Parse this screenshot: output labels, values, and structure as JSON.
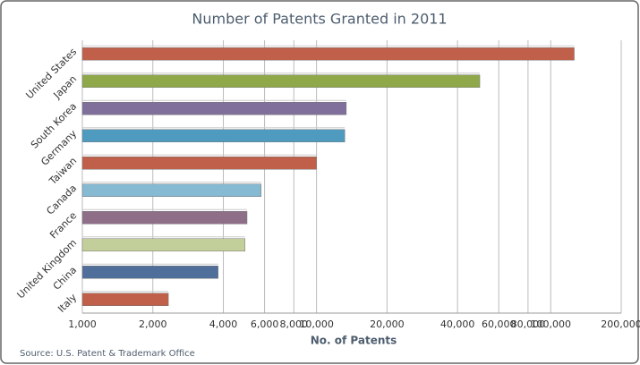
{
  "chart_data": {
    "type": "bar",
    "orientation": "horizontal",
    "title": "Number of Patents Granted in 2011",
    "x_label": "No. of Patents",
    "source": "Source: U.S. Patent & Trademark Office",
    "categories": [
      "United States",
      "Japan",
      "South Korea",
      "Germany",
      "Taiwan",
      "Canada",
      "France",
      "United Kingdom",
      "China",
      "Italy"
    ],
    "values": [
      126000,
      49800,
      13400,
      13200,
      10000,
      5800,
      5050,
      4950,
      3800,
      2330
    ],
    "colors": [
      "#c0604a",
      "#8fa84a",
      "#7f6f9a",
      "#4f9bc0",
      "#c0604a",
      "#86b9d2",
      "#8f6f88",
      "#c3cf9a",
      "#4f6f9a",
      "#c0604a"
    ],
    "xlim": [
      1000,
      200000
    ],
    "log_x": true,
    "grid": true,
    "xticks": [
      {
        "value": 1000,
        "label": "1,000"
      },
      {
        "value": 2000,
        "label": "2,000"
      },
      {
        "value": 4000,
        "label": "4,000"
      },
      {
        "value": 6000,
        "label": "6,000"
      },
      {
        "value": 8000,
        "label": "8,000"
      },
      {
        "value": 10000,
        "label": "10,000"
      },
      {
        "value": 20000,
        "label": "20,000"
      },
      {
        "value": 40000,
        "label": "40,000"
      },
      {
        "value": 60000,
        "label": "60,000"
      },
      {
        "value": 80000,
        "label": "80,000"
      },
      {
        "value": 100000,
        "label": "100,000"
      },
      {
        "value": 200000,
        "label": "200,000"
      }
    ]
  }
}
